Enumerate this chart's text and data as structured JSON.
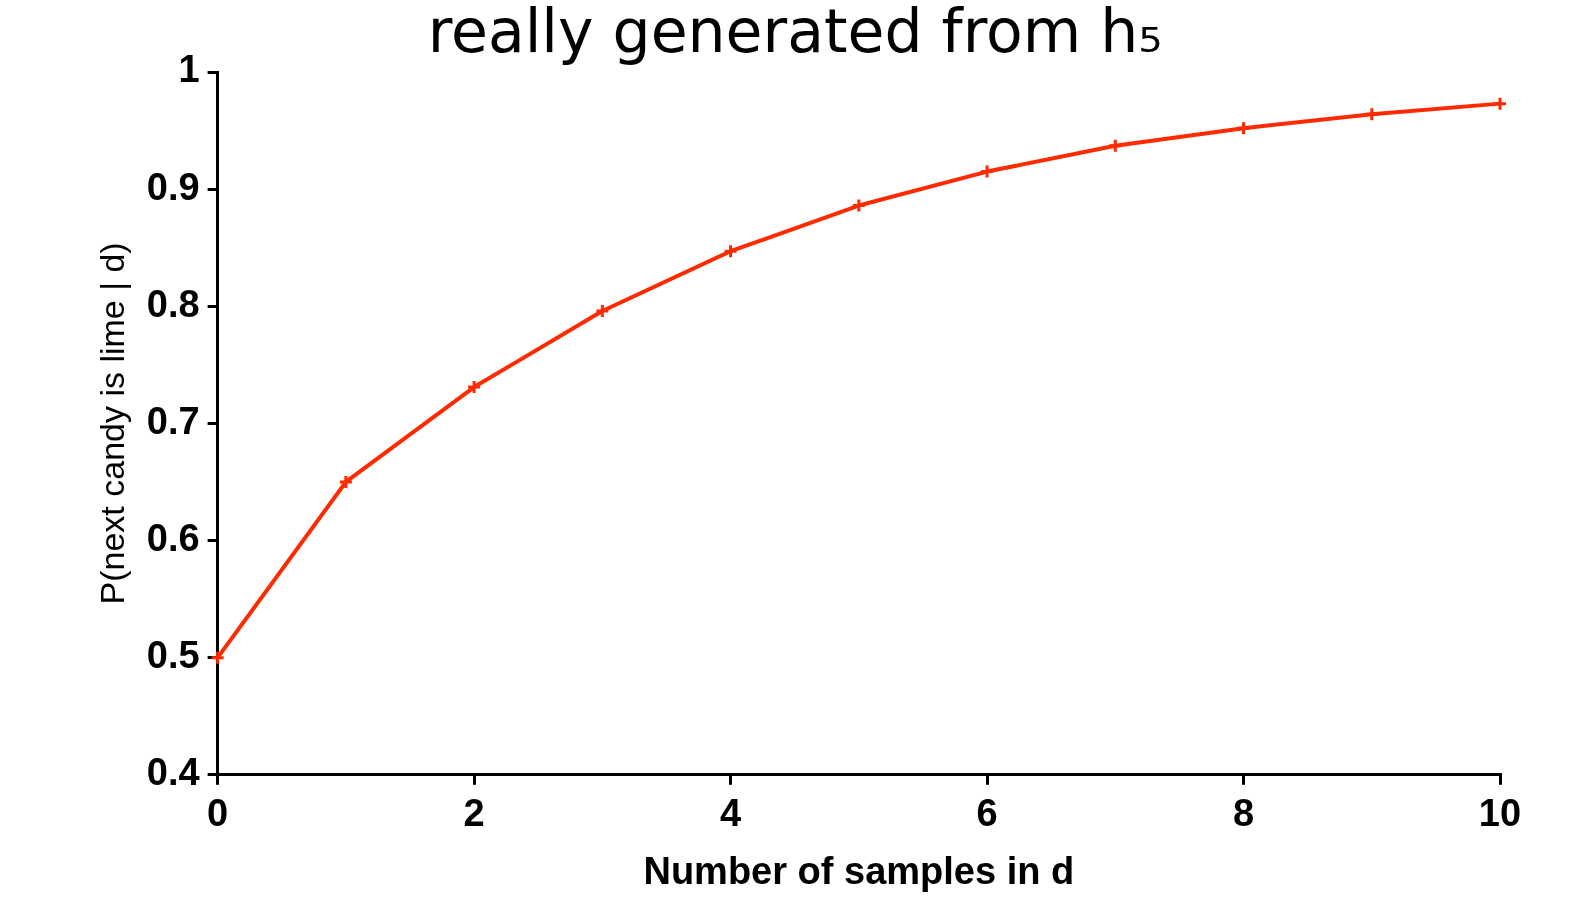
{
  "chart_data": {
    "type": "line",
    "title": "really generated from h₅",
    "xlabel": "Number of samples in d",
    "ylabel": "P(next candy is lime | d)",
    "x": [
      0,
      1,
      2,
      3,
      4,
      5,
      6,
      7,
      8,
      9,
      10
    ],
    "series": [
      {
        "color": "#ff2a00",
        "values": [
          0.5,
          0.65,
          0.731,
          0.796,
          0.847,
          0.886,
          0.915,
          0.937,
          0.952,
          0.964,
          0.973
        ]
      }
    ],
    "xlim": [
      0,
      10
    ],
    "xticks": [
      0,
      2,
      4,
      6,
      8,
      10
    ],
    "ylim": [
      0.4,
      1
    ],
    "yticks": [
      0.4,
      0.5,
      0.6,
      0.7,
      0.8,
      0.9,
      1
    ],
    "grid": false,
    "legend": false,
    "marker": "cross",
    "line_style": "solid"
  }
}
